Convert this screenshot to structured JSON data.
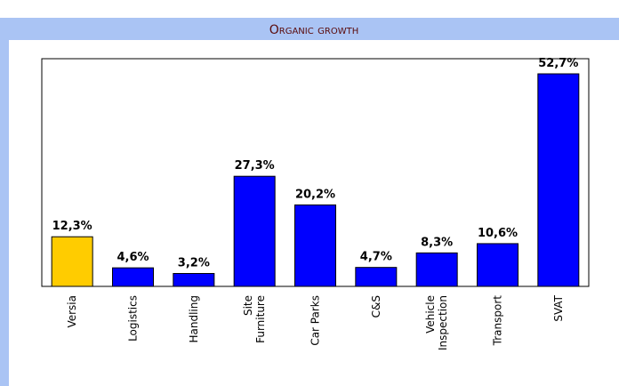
{
  "chart_data": {
    "type": "bar",
    "title": "Organic growth",
    "categories": [
      "Versia",
      "Logistics",
      "Handling",
      "Site\nFurniture",
      "Car Parks",
      "C&S",
      "Vehicle\nInspection",
      "Transport",
      "SVAT"
    ],
    "values": [
      12.3,
      4.6,
      3.2,
      27.3,
      20.2,
      4.7,
      8.3,
      10.6,
      52.7
    ],
    "value_labels": [
      "12,3%",
      "4,6%",
      "3,2%",
      "27,3%",
      "20,2%",
      "4,7%",
      "8,3%",
      "10,6%",
      "52,7%"
    ],
    "colors": [
      "#ffcc00",
      "#0000ff",
      "#0000ff",
      "#0000ff",
      "#0000ff",
      "#0000ff",
      "#0000ff",
      "#0000ff",
      "#0000ff"
    ]
  }
}
